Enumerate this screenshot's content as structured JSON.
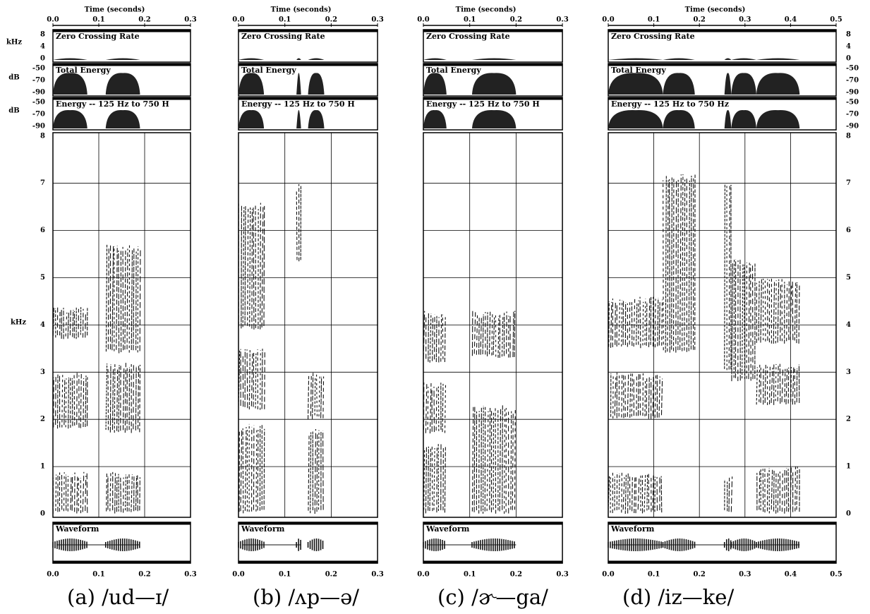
{
  "axis_labels": {
    "khz_top": "kHz",
    "db_total": "dB",
    "db_band": "dB",
    "khz_spec": "kHz"
  },
  "scales": {
    "zcr_ticks": [
      "8",
      "4",
      "0"
    ],
    "energy_ticks": [
      "-50",
      "-70",
      "-90"
    ],
    "band_ticks": [
      "-50",
      "-70",
      "-90"
    ],
    "freq_ticks": [
      "0",
      "1",
      "2",
      "3",
      "4",
      "5",
      "6",
      "7",
      "8"
    ]
  },
  "panels": [
    {
      "time_label": "Time (seconds)",
      "time_ticks": [
        "0.0",
        "0.1",
        "0.2",
        "0.3"
      ],
      "tracks": {
        "zcr": "Zero Crossing Rate",
        "energy": "Total Energy",
        "band": "Energy -- 125 Hz to 750 H",
        "waveform": "Waveform"
      },
      "caption": "(a) /ud—ɪ/"
    },
    {
      "time_label": "Time (seconds)",
      "time_ticks": [
        "0.0",
        "0.1",
        "0.2",
        "0.3"
      ],
      "tracks": {
        "zcr": "Zero Crossing Rate",
        "energy": "Total Energy",
        "band": "Energy -- 125 Hz to 750 H",
        "waveform": "Waveform"
      },
      "caption": "(b) /ʌp—ə/"
    },
    {
      "time_label": "Time (seconds)",
      "time_ticks": [
        "0.0",
        "0.1",
        "0.2",
        "0.3"
      ],
      "tracks": {
        "zcr": "Zero Crossing Rate",
        "energy": "Total Energy",
        "band": "Energy -- 125 Hz to 750 H",
        "waveform": "Waveform"
      },
      "caption": "(c) /ɚ—ga/"
    },
    {
      "time_label": "Time (seconds)",
      "time_ticks": [
        "0.0",
        "0.1",
        "0.2",
        "0.3",
        "0.4",
        "0.5"
      ],
      "tracks": {
        "zcr": "Zero Crossing Rate",
        "energy": "Total Energy",
        "band": "Energy -- 125 Hz to 750 Hz",
        "waveform": "Waveform"
      },
      "caption": "(d) /iz—ke/"
    }
  ]
}
